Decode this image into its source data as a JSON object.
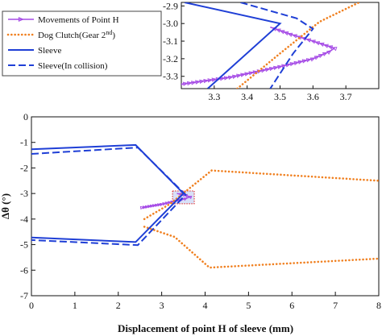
{
  "chart_data": [
    {
      "type": "line",
      "id": "main",
      "xlabel": "Displacement of point H of sleeve (mm)",
      "ylabel": "Δθ (°)",
      "xlim": [
        0,
        8
      ],
      "ylim": [
        -7,
        0
      ],
      "xticks": [
        "0",
        "1",
        "2",
        "3",
        "4",
        "5",
        "6",
        "7",
        "8"
      ],
      "yticks": [
        "0",
        "-1",
        "-2",
        "-3",
        "-4",
        "-5",
        "-6",
        "-7"
      ],
      "grid": false,
      "highlight_box": {
        "x": [
          3.25,
          3.75
        ],
        "y": [
          -3.4,
          -2.9
        ]
      },
      "series": [
        {
          "name": "Movements of Point H",
          "style": "line-triangle",
          "color": "#a64ce6",
          "segments": [
            [
              [
                2.55,
                -3.55
              ],
              [
                3.0,
                -3.42
              ],
              [
                3.25,
                -3.32
              ],
              [
                3.4,
                -3.25
              ],
              [
                3.55,
                -3.2
              ],
              [
                3.65,
                -3.13
              ],
              [
                3.55,
                -3.07
              ],
              [
                3.42,
                -3.02
              ],
              [
                3.35,
                -3.0
              ]
            ]
          ]
        },
        {
          "name": "Dog Clutch(Gear 2nd)",
          "style": "dotted",
          "color": "#f08020",
          "segments": [
            [
              [
                2.6,
                -4.0
              ],
              [
                3.2,
                -3.4
              ],
              [
                4.15,
                -2.1
              ],
              [
                8.0,
                -2.5
              ]
            ],
            [
              [
                2.6,
                -4.3
              ],
              [
                3.3,
                -4.7
              ],
              [
                4.1,
                -5.9
              ],
              [
                8.0,
                -5.55
              ]
            ]
          ]
        },
        {
          "name": "Sleeve",
          "style": "solid",
          "color": "#1f3fd6",
          "segments": [
            [
              [
                0,
                -1.27
              ],
              [
                2.4,
                -1.1
              ],
              [
                3.5,
                -3.0
              ],
              [
                2.4,
                -4.9
              ],
              [
                0,
                -4.72
              ]
            ]
          ]
        },
        {
          "name": "Sleeve(In collision)",
          "style": "dashed",
          "color": "#1f3fd6",
          "segments": [
            [
              [
                0,
                -1.45
              ],
              [
                2.45,
                -1.2
              ],
              [
                3.55,
                -3.05
              ],
              [
                2.45,
                -5.02
              ],
              [
                0,
                -4.82
              ]
            ]
          ]
        }
      ]
    },
    {
      "type": "line",
      "id": "inset",
      "xlim": [
        3.2,
        3.8
      ],
      "ylim": [
        -3.37,
        -2.88
      ],
      "xticks": [
        "3.3",
        "3.4",
        "3.5",
        "3.6",
        "3.7"
      ],
      "yticks": [
        "-2.9",
        "-3.0",
        "-3.1",
        "-3.2",
        "-3.3"
      ],
      "grid": false,
      "series": [
        {
          "name": "Movements of Point H",
          "style": "line-triangle",
          "color": "#a64ce6",
          "segments": [
            [
              [
                3.2,
                -3.345
              ],
              [
                3.35,
                -3.305
              ],
              [
                3.5,
                -3.245
              ],
              [
                3.6,
                -3.2
              ],
              [
                3.65,
                -3.16
              ],
              [
                3.665,
                -3.14
              ],
              [
                3.6,
                -3.1
              ],
              [
                3.53,
                -3.06
              ],
              [
                3.47,
                -3.02
              ]
            ]
          ]
        },
        {
          "name": "Dog Clutch(Gear 2nd)",
          "style": "dotted",
          "color": "#f08020",
          "segments": [
            [
              [
                3.37,
                -3.37
              ],
              [
                3.5,
                -3.17
              ],
              [
                3.62,
                -2.99
              ],
              [
                3.74,
                -2.88
              ]
            ]
          ]
        },
        {
          "name": "Sleeve",
          "style": "solid",
          "color": "#1f3fd6",
          "segments": [
            [
              [
                3.21,
                -2.88
              ],
              [
                3.5,
                -3.0
              ],
              [
                3.28,
                -3.37
              ]
            ]
          ]
        },
        {
          "name": "Sleeve(In collision)",
          "style": "dashed",
          "color": "#1f3fd6",
          "segments": [
            [
              [
                3.38,
                -2.88
              ],
              [
                3.55,
                -2.97
              ],
              [
                3.6,
                -3.03
              ],
              [
                3.54,
                -3.17
              ],
              [
                3.47,
                -3.37
              ]
            ]
          ]
        }
      ]
    }
  ],
  "legend": [
    {
      "label": "Movements of Point H",
      "style": "line-triangle",
      "color": "#a64ce6"
    },
    {
      "label": "Dog Clutch(Gear 2",
      "sup": "nd",
      "tail": ")",
      "style": "dotted",
      "color": "#f08020"
    },
    {
      "label": "Sleeve",
      "style": "solid",
      "color": "#1f3fd6"
    },
    {
      "label": "Sleeve(In collision)",
      "style": "dashed",
      "color": "#1f3fd6"
    }
  ]
}
